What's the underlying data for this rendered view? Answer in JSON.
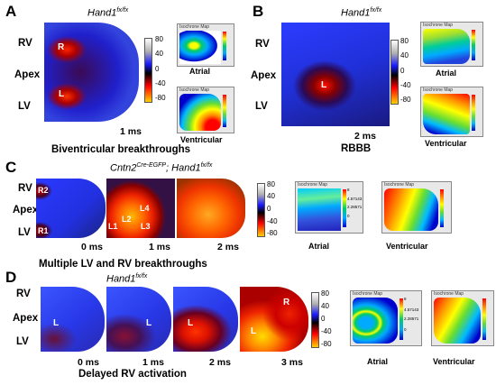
{
  "colors": {
    "activation_scale": [
      "#ffffff",
      "#b0b0b0",
      "#1a1aff",
      "#000000",
      "#ff0000",
      "#ffd000"
    ],
    "iso_atrial": [
      "#ff0000",
      "#ffff00",
      "#00cc66",
      "#00aaff",
      "#0000cc"
    ],
    "iso_ventricular": [
      "#ff0000",
      "#ff8800",
      "#ffff00",
      "#66dd33",
      "#00bbff",
      "#0000cc"
    ]
  },
  "panels": [
    {
      "letter": "A",
      "genotype": "Hand1",
      "genotype_sup": "fx/fx",
      "axis": [
        "RV",
        "Apex",
        "LV"
      ],
      "maps": [
        {
          "time": "1 ms",
          "marks": [
            "R",
            "L"
          ]
        }
      ],
      "colorbar_ticks": [
        "80",
        "40",
        "0",
        "-40",
        "-80"
      ],
      "iso": [
        {
          "title": "Isochrone Map",
          "ticks": [
            "8",
            "6.5",
            "4",
            "2",
            "0"
          ],
          "label": "Atrial"
        },
        {
          "title": "Isochrone Map",
          "ticks": [
            "14",
            "12",
            "8",
            "4",
            "0"
          ],
          "label": "Ventricular"
        }
      ],
      "caption": "Biventricular breakthroughs"
    },
    {
      "letter": "B",
      "genotype": "Hand1",
      "genotype_sup": "fx/fx",
      "axis": [
        "RV",
        "Apex",
        "LV"
      ],
      "maps": [
        {
          "time": "2 ms",
          "marks": [
            "L"
          ]
        }
      ],
      "colorbar_ticks": [
        "80",
        "40",
        "0",
        "-40",
        "-80"
      ],
      "iso": [
        {
          "title": "Isochrone Map",
          "ticks": [
            "5",
            "4",
            "2",
            "0"
          ],
          "label": "Atrial"
        },
        {
          "title": "Isochrone Map",
          "ticks": [
            "14",
            "10",
            "5",
            "0"
          ],
          "label": "Ventricular"
        }
      ],
      "caption": "RBBB"
    },
    {
      "letter": "C",
      "genotype": "Cntn2",
      "genotype_sup": "Cre-EGFP",
      "genotype2": "; Hand1",
      "genotype2_sup": "fx/fx",
      "axis": [
        "RV",
        "Apex",
        "LV"
      ],
      "maps": [
        {
          "time": "0 ms",
          "marks": [
            "R2",
            "R1"
          ]
        },
        {
          "time": "1 ms",
          "marks": [
            "L4",
            "L2",
            "L1",
            "L3"
          ]
        },
        {
          "time": "2 ms",
          "marks": []
        }
      ],
      "colorbar_ticks": [
        "80",
        "40",
        "0",
        "-40",
        "-80"
      ],
      "iso": [
        {
          "title": "Isochrone Map",
          "ticks": [
            "8",
            "4.57143",
            "2.28571",
            "0"
          ],
          "label": "Atrial"
        },
        {
          "title": "Isochrone Map",
          "ticks": [
            "14",
            "10",
            "5",
            "0"
          ],
          "label": "Ventricular"
        }
      ],
      "caption": "Multiple LV and RV breakthroughs"
    },
    {
      "letter": "D",
      "genotype": "Hand1",
      "genotype_sup": "fx/fx",
      "axis": [
        "RV",
        "Apex",
        "LV"
      ],
      "maps": [
        {
          "time": "0 ms",
          "marks": [
            "L"
          ]
        },
        {
          "time": "1 ms",
          "marks": [
            "L"
          ]
        },
        {
          "time": "2 ms",
          "marks": [
            "L"
          ]
        },
        {
          "time": "3 ms",
          "marks": [
            "R",
            "L"
          ]
        }
      ],
      "colorbar_ticks": [
        "80",
        "40",
        "0",
        "-40",
        "-80"
      ],
      "iso": [
        {
          "title": "Isochrone Map",
          "ticks": [
            "8",
            "4.57143",
            "2.28571",
            "0"
          ],
          "label": "Atrial"
        },
        {
          "title": "Isochrone Map",
          "ticks": [
            "14",
            "10",
            "5",
            "0"
          ],
          "label": "Ventricular"
        }
      ],
      "caption": "Delayed RV activation"
    }
  ]
}
